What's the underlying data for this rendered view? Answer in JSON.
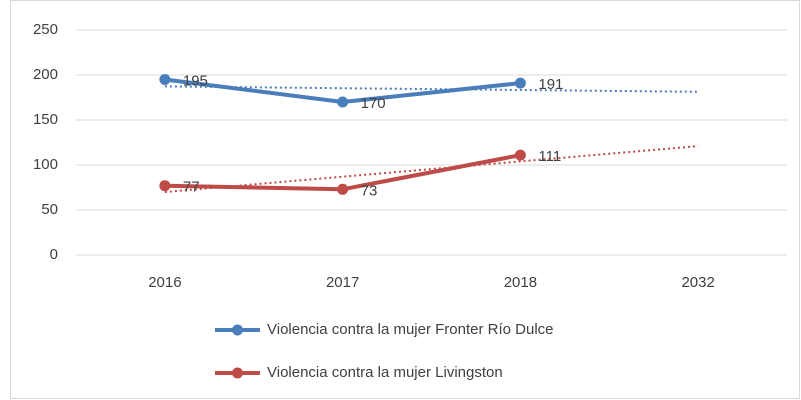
{
  "chart_data": {
    "type": "line",
    "categories": [
      "2016",
      "2017",
      "2018",
      "2032"
    ],
    "series": [
      {
        "name": "Violencia contra la mujer Fronter Río Dulce",
        "color": "#4a7ebb",
        "values": [
          195,
          170,
          191,
          null
        ],
        "trendline": "linear"
      },
      {
        "name": "Violencia contra la mujer Livingston",
        "color": "#be4b48",
        "values": [
          77,
          73,
          111,
          null
        ],
        "trendline": "linear"
      }
    ],
    "ylim": [
      0,
      250
    ],
    "yticks": [
      0,
      50,
      100,
      150,
      200,
      250
    ],
    "grid": true,
    "legend": "bottom",
    "data_labels": true
  }
}
